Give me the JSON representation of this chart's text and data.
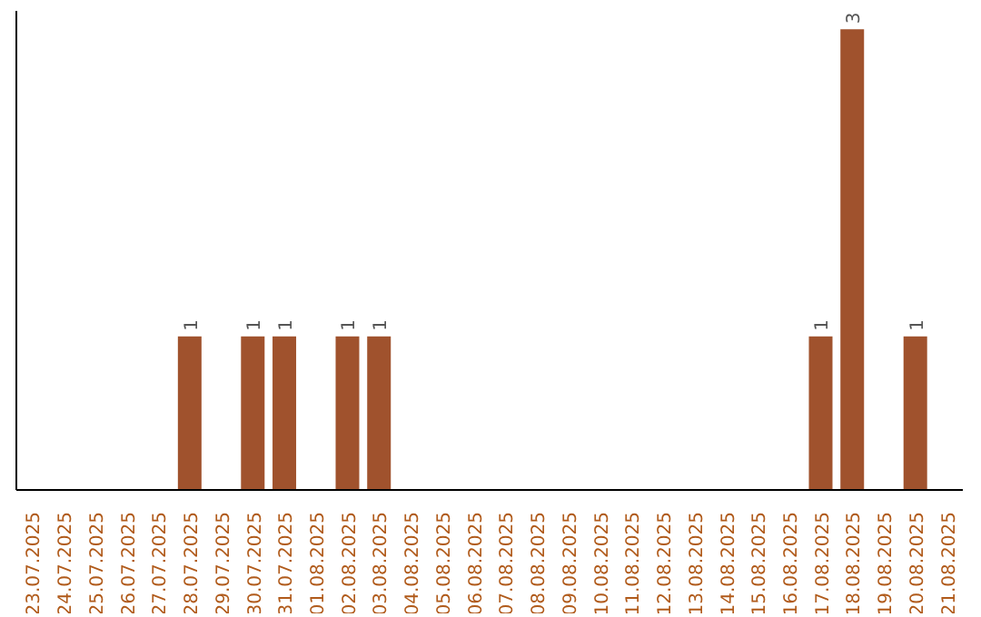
{
  "chart_data": {
    "type": "bar",
    "categories": [
      "23.07.2025",
      "24.07.2025",
      "25.07.2025",
      "26.07.2025",
      "27.07.2025",
      "28.07.2025",
      "29.07.2025",
      "30.07.2025",
      "31.07.2025",
      "01.08.2025",
      "02.08.2025",
      "03.08.2025",
      "04.08.2025",
      "05.08.2025",
      "06.08.2025",
      "07.08.2025",
      "08.08.2025",
      "09.08.2025",
      "10.08.2025",
      "11.08.2025",
      "12.08.2025",
      "13.08.2025",
      "14.08.2025",
      "15.08.2025",
      "16.08.2025",
      "17.08.2025",
      "18.08.2025",
      "19.08.2025",
      "20.08.2025",
      "21.08.2025"
    ],
    "values": [
      0,
      0,
      0,
      0,
      0,
      1,
      0,
      1,
      1,
      0,
      1,
      1,
      0,
      0,
      0,
      0,
      0,
      0,
      0,
      0,
      0,
      0,
      0,
      0,
      0,
      1,
      3,
      0,
      1,
      0
    ],
    "value_labels": [
      null,
      null,
      null,
      null,
      null,
      "1",
      null,
      "1",
      "1",
      null,
      "1",
      "1",
      null,
      null,
      null,
      null,
      null,
      null,
      null,
      null,
      null,
      null,
      null,
      null,
      null,
      "1",
      "3",
      null,
      "1",
      null
    ],
    "color": "#a0522d",
    "grid": false,
    "legend": false,
    "tick_labels": "x"
  }
}
